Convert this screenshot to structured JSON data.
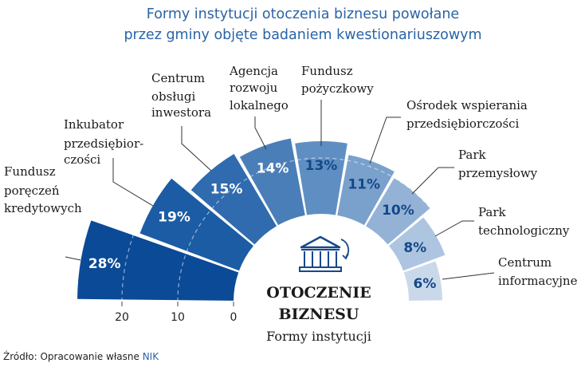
{
  "chart_data": {
    "type": "radial-bar",
    "title": [
      "Formy instytucji otoczenia biznesu powołane",
      "przez gminy objęte badaniem kwestionariuszowym"
    ],
    "center_title": [
      "OTOCZENIE",
      "BIZNESU"
    ],
    "center_subtitle": "Formy instytucji",
    "center_icon": "institution-building-icon",
    "unit": "%",
    "radial_ticks": [
      0,
      10,
      20
    ],
    "grid": "dashed circles at 10 and 20",
    "categories": [
      [
        "Fundusz",
        "poręczeń",
        "kredytowych"
      ],
      [
        "Inkubator",
        "przedsiębior-",
        "czości"
      ],
      [
        "Centrum",
        "obsługi",
        "inwestora"
      ],
      [
        "Agencja",
        "rozwoju",
        "lokalnego"
      ],
      [
        "Fundusz",
        "pożyczkowy"
      ],
      [
        "Ośrodek wspierania",
        "przedsiębiorczości"
      ],
      [
        "Park",
        "przemysłowy"
      ],
      [
        "Park",
        "technologiczny"
      ],
      [
        "Centrum",
        "informacyjne"
      ]
    ],
    "values": [
      28,
      19,
      15,
      14,
      13,
      11,
      10,
      8,
      6
    ],
    "value_labels": [
      "28%",
      "19%",
      "15%",
      "14%",
      "13%",
      "11%",
      "10%",
      "8%",
      "6%"
    ],
    "colors": [
      "#0b4a96",
      "#1c5ca4",
      "#2f6bae",
      "#4a7eb8",
      "#5f8fc2",
      "#7aa1cc",
      "#93b2d6",
      "#adc5e0",
      "#cad9ea"
    ],
    "label_colors": [
      "#ffffff",
      "#ffffff",
      "#ffffff",
      "#ffffff",
      "#15488a",
      "#15488a",
      "#15488a",
      "#15488a",
      "#15488a"
    ]
  },
  "source": {
    "prefix": "Źródło: Opracowanie własne ",
    "org": "NIK"
  }
}
